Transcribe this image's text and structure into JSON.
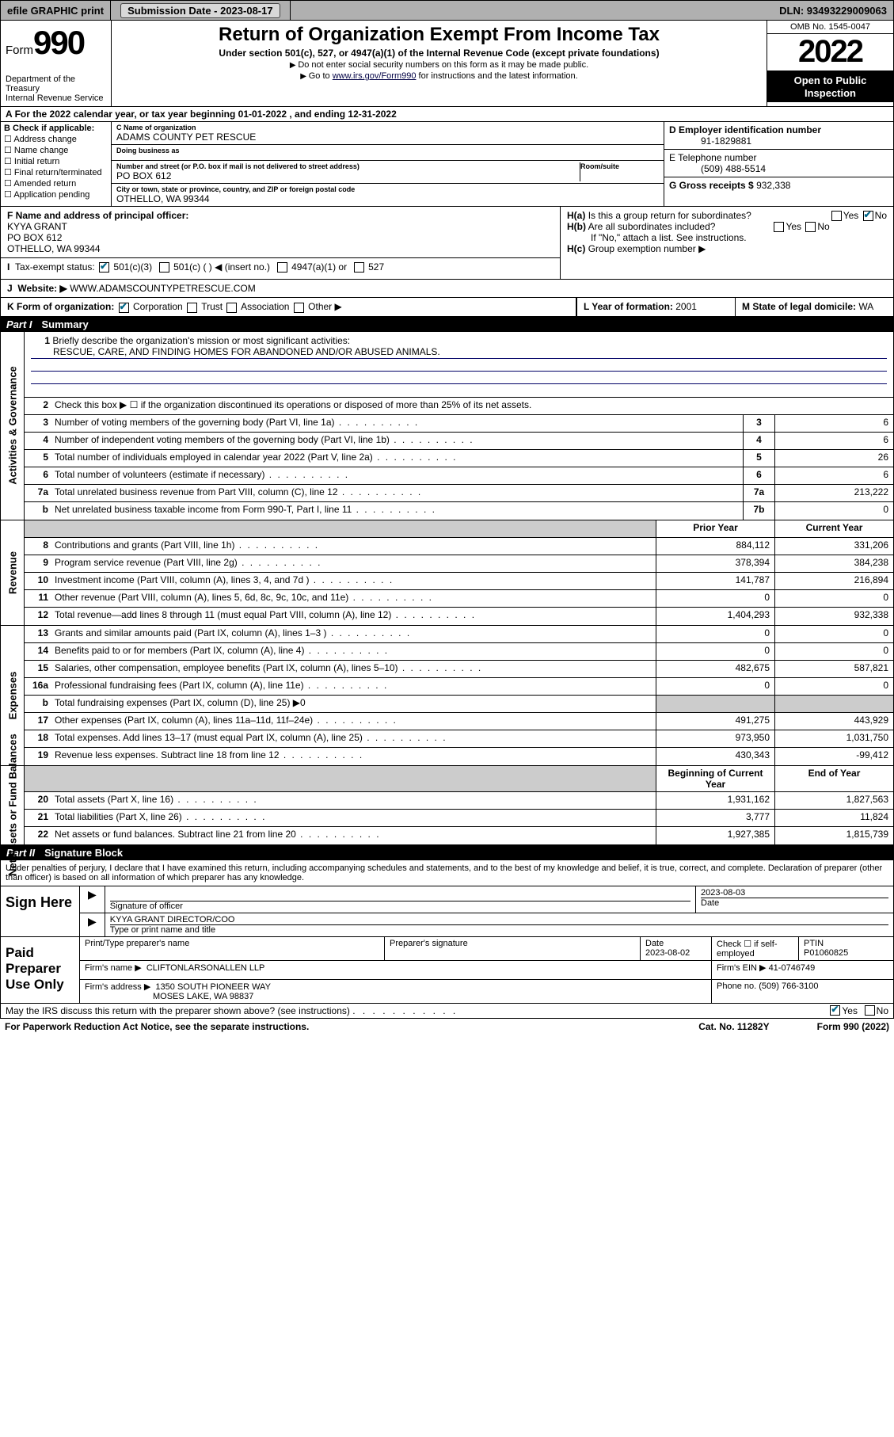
{
  "topbar": {
    "efile": "efile GRAPHIC print",
    "submission_label": "Submission Date - 2023-08-17",
    "dln_label": "DLN: 93493229009063"
  },
  "header": {
    "form_word": "Form",
    "form_num": "990",
    "dept": "Department of the Treasury",
    "irs": "Internal Revenue Service",
    "title": "Return of Organization Exempt From Income Tax",
    "sub": "Under section 501(c), 527, or 4947(a)(1) of the Internal Revenue Code (except private foundations)",
    "note1": "Do not enter social security numbers on this form as it may be made public.",
    "note2_pre": "Go to ",
    "note2_link": "www.irs.gov/Form990",
    "note2_post": " for instructions and the latest information.",
    "omb": "OMB No. 1545-0047",
    "year": "2022",
    "inspect": "Open to Public Inspection"
  },
  "row_a": "For the 2022 calendar year, or tax year beginning 01-01-2022   , and ending 12-31-2022",
  "section_b": {
    "header": "B Check if applicable:",
    "opts": [
      "Address change",
      "Name change",
      "Initial return",
      "Final return/terminated",
      "Amended return",
      "Application pending"
    ]
  },
  "section_c": {
    "name_lbl": "C Name of organization",
    "name": "ADAMS COUNTY PET RESCUE",
    "dba_lbl": "Doing business as",
    "dba": "",
    "addr_lbl": "Number and street (or P.O. box if mail is not delivered to street address)",
    "room_lbl": "Room/suite",
    "addr": "PO BOX 612",
    "city_lbl": "City or town, state or province, country, and ZIP or foreign postal code",
    "city": "OTHELLO, WA  99344"
  },
  "section_d": {
    "ein_lbl": "D Employer identification number",
    "ein": "91-1829881",
    "phone_lbl": "E Telephone number",
    "phone": "(509) 488-5514",
    "gross_lbl": "G Gross receipts $ ",
    "gross": "932,338"
  },
  "section_f": {
    "lbl": "F Name and address of principal officer:",
    "name": "KYYA GRANT",
    "addr1": "PO BOX 612",
    "addr2": "OTHELLO, WA  99344"
  },
  "section_h": {
    "ha": "Is this a group return for subordinates?",
    "hb": "Are all subordinates included?",
    "hb_note": "If \"No,\" attach a list. See instructions.",
    "hc": "Group exemption number ▶"
  },
  "section_i": {
    "lbl": "Tax-exempt status:",
    "opts": [
      "501(c)(3)",
      "501(c) (  ) ◀ (insert no.)",
      "4947(a)(1) or",
      "527"
    ]
  },
  "section_j": {
    "lbl": "Website: ▶",
    "val": "WWW.ADAMSCOUNTYPETRESCUE.COM"
  },
  "section_k": {
    "lbl": "K Form of organization:",
    "opts": [
      "Corporation",
      "Trust",
      "Association",
      "Other ▶"
    ]
  },
  "section_l": {
    "lbl": "L Year of formation: ",
    "val": "2001"
  },
  "section_m": {
    "lbl": "M State of legal domicile: ",
    "val": "WA"
  },
  "part1": {
    "header_num": "Part I",
    "header_title": "Summary",
    "side_labels": [
      "Activities & Governance",
      "Revenue",
      "Expenses",
      "Net Assets or Fund Balances"
    ],
    "line1_lbl": "Briefly describe the organization's mission or most significant activities:",
    "mission": "RESCUE, CARE, AND FINDING HOMES FOR ABANDONED AND/OR ABUSED ANIMALS.",
    "line2": "Check this box ▶ ☐  if the organization discontinued its operations or disposed of more than 25% of its net assets.",
    "gov_lines": [
      {
        "n": "3",
        "d": "Number of voting members of the governing body (Part VI, line 1a)",
        "b": "3",
        "v": "6"
      },
      {
        "n": "4",
        "d": "Number of independent voting members of the governing body (Part VI, line 1b)",
        "b": "4",
        "v": "6"
      },
      {
        "n": "5",
        "d": "Total number of individuals employed in calendar year 2022 (Part V, line 2a)",
        "b": "5",
        "v": "26"
      },
      {
        "n": "6",
        "d": "Total number of volunteers (estimate if necessary)",
        "b": "6",
        "v": "6"
      },
      {
        "n": "7a",
        "d": "Total unrelated business revenue from Part VIII, column (C), line 12",
        "b": "7a",
        "v": "213,222"
      },
      {
        "n": "b",
        "d": "Net unrelated business taxable income from Form 990-T, Part I, line 11",
        "b": "7b",
        "v": "0"
      }
    ],
    "col_headers": {
      "prior": "Prior Year",
      "current": "Current Year",
      "begin": "Beginning of Current Year",
      "end": "End of Year"
    },
    "rev_lines": [
      {
        "n": "8",
        "d": "Contributions and grants (Part VIII, line 1h)",
        "p": "884,112",
        "c": "331,206"
      },
      {
        "n": "9",
        "d": "Program service revenue (Part VIII, line 2g)",
        "p": "378,394",
        "c": "384,238"
      },
      {
        "n": "10",
        "d": "Investment income (Part VIII, column (A), lines 3, 4, and 7d )",
        "p": "141,787",
        "c": "216,894"
      },
      {
        "n": "11",
        "d": "Other revenue (Part VIII, column (A), lines 5, 6d, 8c, 9c, 10c, and 11e)",
        "p": "0",
        "c": "0"
      },
      {
        "n": "12",
        "d": "Total revenue—add lines 8 through 11 (must equal Part VIII, column (A), line 12)",
        "p": "1,404,293",
        "c": "932,338"
      }
    ],
    "exp_lines": [
      {
        "n": "13",
        "d": "Grants and similar amounts paid (Part IX, column (A), lines 1–3 )",
        "p": "0",
        "c": "0"
      },
      {
        "n": "14",
        "d": "Benefits paid to or for members (Part IX, column (A), line 4)",
        "p": "0",
        "c": "0"
      },
      {
        "n": "15",
        "d": "Salaries, other compensation, employee benefits (Part IX, column (A), lines 5–10)",
        "p": "482,675",
        "c": "587,821"
      },
      {
        "n": "16a",
        "d": "Professional fundraising fees (Part IX, column (A), line 11e)",
        "p": "0",
        "c": "0"
      },
      {
        "n": "b",
        "d": "Total fundraising expenses (Part IX, column (D), line 25) ▶0",
        "p": "",
        "c": "",
        "shade": true
      },
      {
        "n": "17",
        "d": "Other expenses (Part IX, column (A), lines 11a–11d, 11f–24e)",
        "p": "491,275",
        "c": "443,929"
      },
      {
        "n": "18",
        "d": "Total expenses. Add lines 13–17 (must equal Part IX, column (A), line 25)",
        "p": "973,950",
        "c": "1,031,750"
      },
      {
        "n": "19",
        "d": "Revenue less expenses. Subtract line 18 from line 12",
        "p": "430,343",
        "c": "-99,412"
      }
    ],
    "net_lines": [
      {
        "n": "20",
        "d": "Total assets (Part X, line 16)",
        "p": "1,931,162",
        "c": "1,827,563"
      },
      {
        "n": "21",
        "d": "Total liabilities (Part X, line 26)",
        "p": "3,777",
        "c": "11,824"
      },
      {
        "n": "22",
        "d": "Net assets or fund balances. Subtract line 21 from line 20",
        "p": "1,927,385",
        "c": "1,815,739"
      }
    ]
  },
  "part2": {
    "header_num": "Part II",
    "header_title": "Signature Block",
    "intro": "Under penalties of perjury, I declare that I have examined this return, including accompanying schedules and statements, and to the best of my knowledge and belief, it is true, correct, and complete. Declaration of preparer (other than officer) is based on all information of which preparer has any knowledge.",
    "sign_here": "Sign Here",
    "sig_officer_lbl": "Signature of officer",
    "sig_date": "2023-08-03",
    "date_lbl": "Date",
    "officer_name": "KYYA GRANT  DIRECTOR/COO",
    "officer_name_lbl": "Type or print name and title",
    "paid": "Paid Preparer Use Only",
    "prep_name_lbl": "Print/Type preparer's name",
    "prep_sig_lbl": "Preparer's signature",
    "prep_date_lbl": "Date",
    "prep_date": "2023-08-02",
    "self_emp_lbl": "Check ☐ if self-employed",
    "ptin_lbl": "PTIN",
    "ptin": "P01060825",
    "firm_name_lbl": "Firm's name   ▶",
    "firm_name": "CLIFTONLARSONALLEN LLP",
    "firm_ein_lbl": "Firm's EIN ▶ ",
    "firm_ein": "41-0746749",
    "firm_addr_lbl": "Firm's address ▶",
    "firm_addr1": "1350 SOUTH PIONEER WAY",
    "firm_addr2": "MOSES LAKE, WA  98837",
    "firm_phone_lbl": "Phone no. ",
    "firm_phone": "(509) 766-3100",
    "discuss": "May the IRS discuss this return with the preparer shown above? (see instructions)",
    "yes": "Yes",
    "no": "No"
  },
  "footer": {
    "left": "For Paperwork Reduction Act Notice, see the separate instructions.",
    "mid": "Cat. No. 11282Y",
    "right": "Form 990 (2022)"
  }
}
